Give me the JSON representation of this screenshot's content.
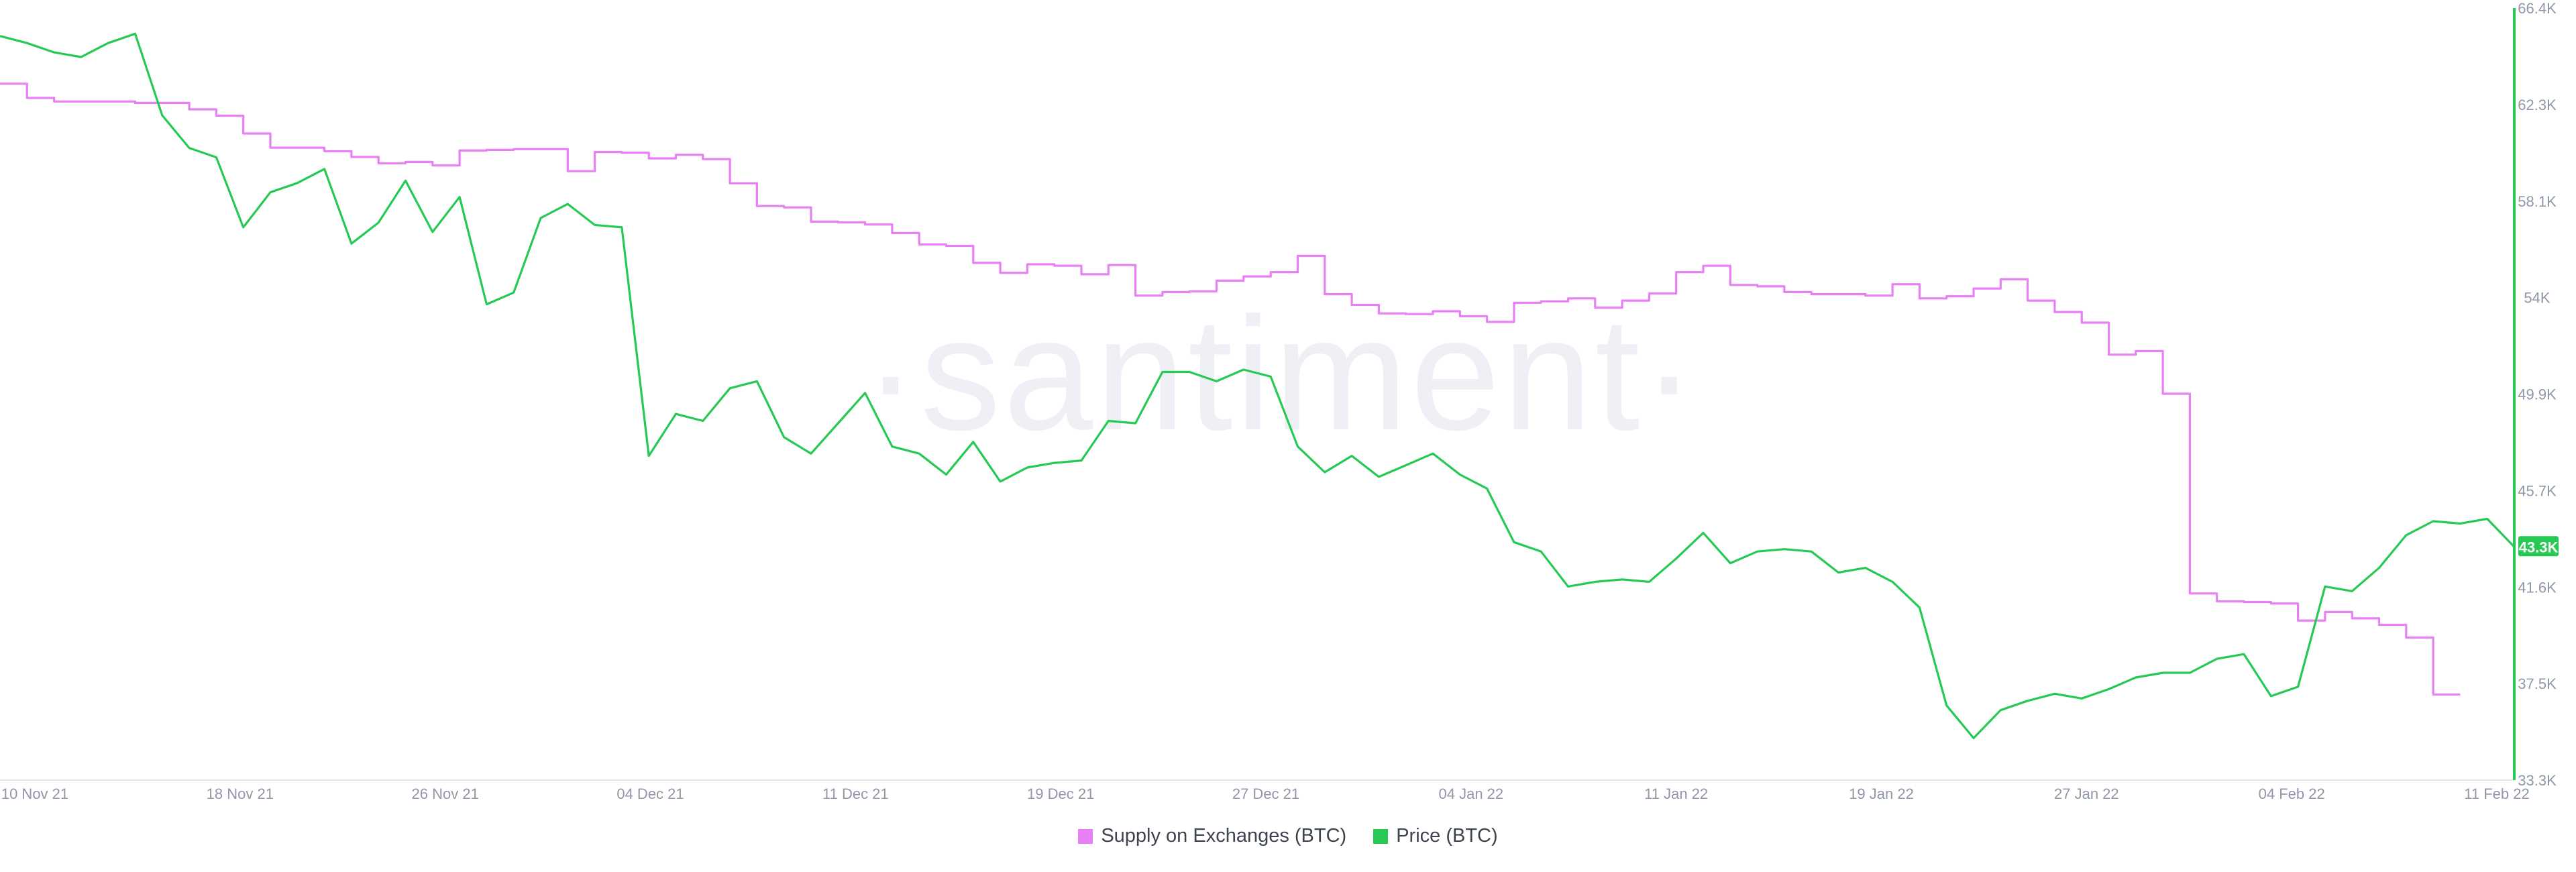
{
  "watermark": "·santiment·",
  "current_price_badge": "43.3K",
  "colors": {
    "supply": "#e87ff5",
    "price": "#26c953",
    "badge_bg": "#26c953",
    "axis_text": "#8f97a8",
    "watermark": "#eef0f5"
  },
  "legend": [
    {
      "label": "Supply on Exchanges (BTC)",
      "color": "#e87ff5"
    },
    {
      "label": "Price (BTC)",
      "color": "#26c953"
    }
  ],
  "chart_data": {
    "type": "line",
    "title": "",
    "xlabel": "",
    "ylabel": "",
    "x_ticks": [
      "10 Nov 21",
      "18 Nov 21",
      "26 Nov 21",
      "04 Dec 21",
      "11 Dec 21",
      "19 Dec 21",
      "27 Dec 21",
      "04 Jan 22",
      "11 Jan 22",
      "19 Jan 22",
      "27 Jan 22",
      "04 Feb 22",
      "11 Feb 22"
    ],
    "x_range": [
      "2021-11-10",
      "2022-02-11"
    ],
    "y_right_ticks": [
      "66.4K",
      "62.3K",
      "58.1K",
      "54K",
      "49.9K",
      "45.7K",
      "41.6K",
      "37.5K",
      "33.3K"
    ],
    "y_right_range": [
      33300,
      66400
    ],
    "series": [
      {
        "name": "Supply on Exchanges (BTC)",
        "color": "#e87ff5",
        "step": true,
        "axis": "hidden",
        "y_range": [
          0,
          100
        ],
        "points": [
          [
            "2021-11-10",
            92
          ],
          [
            "2021-11-11",
            90
          ],
          [
            "2021-11-12",
            89.5
          ],
          [
            "2021-11-13",
            89.5
          ],
          [
            "2021-11-15",
            89.3
          ],
          [
            "2021-11-17",
            88.4
          ],
          [
            "2021-11-18",
            87.5
          ],
          [
            "2021-11-19",
            85
          ],
          [
            "2021-11-20",
            83
          ],
          [
            "2021-11-21",
            83
          ],
          [
            "2021-11-22",
            82.5
          ],
          [
            "2021-11-23",
            81.7
          ],
          [
            "2021-11-24",
            80.8
          ],
          [
            "2021-11-25",
            81
          ],
          [
            "2021-11-26",
            80.5
          ],
          [
            "2021-11-27",
            82.6
          ],
          [
            "2021-11-28",
            82.7
          ],
          [
            "2021-11-29",
            82.8
          ],
          [
            "2021-11-30",
            82.8
          ],
          [
            "2021-12-01",
            79.7
          ],
          [
            "2021-12-02",
            82.4
          ],
          [
            "2021-12-03",
            82.3
          ],
          [
            "2021-12-04",
            81.5
          ],
          [
            "2021-12-05",
            82
          ],
          [
            "2021-12-06",
            81.4
          ],
          [
            "2021-12-07",
            78
          ],
          [
            "2021-12-08",
            74.8
          ],
          [
            "2021-12-09",
            74.6
          ],
          [
            "2021-12-10",
            72.6
          ],
          [
            "2021-12-11",
            72.5
          ],
          [
            "2021-12-12",
            72.2
          ],
          [
            "2021-12-13",
            71
          ],
          [
            "2021-12-14",
            69.4
          ],
          [
            "2021-12-15",
            69.2
          ],
          [
            "2021-12-16",
            66.8
          ],
          [
            "2021-12-17",
            65.4
          ],
          [
            "2021-12-18",
            66.6
          ],
          [
            "2021-12-19",
            66.4
          ],
          [
            "2021-12-20",
            65.2
          ],
          [
            "2021-12-21",
            66.5
          ],
          [
            "2021-12-22",
            62.2
          ],
          [
            "2021-12-23",
            62.7
          ],
          [
            "2021-12-24",
            62.8
          ],
          [
            "2021-12-25",
            64.3
          ],
          [
            "2021-12-26",
            64.9
          ],
          [
            "2021-12-27",
            65.5
          ],
          [
            "2021-12-28",
            67.8
          ],
          [
            "2021-12-29",
            62.4
          ],
          [
            "2021-12-30",
            60.9
          ],
          [
            "2021-12-31",
            59.7
          ],
          [
            "2022-01-01",
            59.6
          ],
          [
            "2022-01-02",
            60
          ],
          [
            "2022-01-03",
            59.3
          ],
          [
            "2022-01-04",
            58.5
          ],
          [
            "2022-01-05",
            61.2
          ],
          [
            "2022-01-06",
            61.4
          ],
          [
            "2022-01-07",
            61.8
          ],
          [
            "2022-01-08",
            60.5
          ],
          [
            "2022-01-09",
            61.5
          ],
          [
            "2022-01-10",
            62.5
          ],
          [
            "2022-01-11",
            65.5
          ],
          [
            "2022-01-12",
            66.4
          ],
          [
            "2022-01-13",
            63.7
          ],
          [
            "2022-01-14",
            63.5
          ],
          [
            "2022-01-15",
            62.7
          ],
          [
            "2022-01-16",
            62.4
          ],
          [
            "2022-01-17",
            62.4
          ],
          [
            "2022-01-18",
            62.2
          ],
          [
            "2022-01-19",
            63.8
          ],
          [
            "2022-01-20",
            61.8
          ],
          [
            "2022-01-21",
            62.1
          ],
          [
            "2022-01-22",
            63.2
          ],
          [
            "2022-01-23",
            64.5
          ],
          [
            "2022-01-24",
            61.5
          ],
          [
            "2022-01-25",
            59.9
          ],
          [
            "2022-01-26",
            58.4
          ],
          [
            "2022-01-27",
            53.9
          ],
          [
            "2022-01-28",
            54.4
          ],
          [
            "2022-01-29",
            48.4
          ],
          [
            "2022-01-30",
            20.3
          ],
          [
            "2022-01-31",
            19.2
          ],
          [
            "2022-02-01",
            19.1
          ],
          [
            "2022-02-02",
            18.9
          ],
          [
            "2022-02-03",
            16.5
          ],
          [
            "2022-02-04",
            17.7
          ],
          [
            "2022-02-05",
            16.8
          ],
          [
            "2022-02-06",
            15.9
          ],
          [
            "2022-02-07",
            14.1
          ],
          [
            "2022-02-08",
            6.1
          ],
          [
            "2022-02-09",
            6.1
          ]
        ]
      },
      {
        "name": "Price (BTC)",
        "color": "#26c953",
        "step": false,
        "axis": "right",
        "points": [
          [
            "2021-11-10",
            65200
          ],
          [
            "2021-11-11",
            64900
          ],
          [
            "2021-11-12",
            64500
          ],
          [
            "2021-11-13",
            64300
          ],
          [
            "2021-11-14",
            64900
          ],
          [
            "2021-11-15",
            65300
          ],
          [
            "2021-11-16",
            61800
          ],
          [
            "2021-11-17",
            60400
          ],
          [
            "2021-11-18",
            60000
          ],
          [
            "2021-11-19",
            57000
          ],
          [
            "2021-11-20",
            58500
          ],
          [
            "2021-11-21",
            58900
          ],
          [
            "2021-11-22",
            59500
          ],
          [
            "2021-11-23",
            56300
          ],
          [
            "2021-11-24",
            57200
          ],
          [
            "2021-11-25",
            59000
          ],
          [
            "2021-11-26",
            56800
          ],
          [
            "2021-11-27",
            58300
          ],
          [
            "2021-11-28",
            53700
          ],
          [
            "2021-11-29",
            54200
          ],
          [
            "2021-11-30",
            57400
          ],
          [
            "2021-12-01",
            58000
          ],
          [
            "2021-12-02",
            57100
          ],
          [
            "2021-12-03",
            57000
          ],
          [
            "2021-12-04",
            47200
          ],
          [
            "2021-12-05",
            49000
          ],
          [
            "2021-12-06",
            48700
          ],
          [
            "2021-12-07",
            50100
          ],
          [
            "2021-12-08",
            50400
          ],
          [
            "2021-12-09",
            48000
          ],
          [
            "2021-12-10",
            47300
          ],
          [
            "2021-12-11",
            48600
          ],
          [
            "2021-12-12",
            49900
          ],
          [
            "2021-12-13",
            47600
          ],
          [
            "2021-12-14",
            47300
          ],
          [
            "2021-12-15",
            46400
          ],
          [
            "2021-12-16",
            47800
          ],
          [
            "2021-12-17",
            46100
          ],
          [
            "2021-12-18",
            46700
          ],
          [
            "2021-12-19",
            46900
          ],
          [
            "2021-12-20",
            47000
          ],
          [
            "2021-12-21",
            48700
          ],
          [
            "2021-12-22",
            48600
          ],
          [
            "2021-12-23",
            50800
          ],
          [
            "2021-12-24",
            50800
          ],
          [
            "2021-12-25",
            50400
          ],
          [
            "2021-12-26",
            50900
          ],
          [
            "2021-12-27",
            50600
          ],
          [
            "2021-12-28",
            47600
          ],
          [
            "2021-12-29",
            46500
          ],
          [
            "2021-12-30",
            47200
          ],
          [
            "2021-12-31",
            46300
          ],
          [
            "2022-01-01",
            46800
          ],
          [
            "2022-01-02",
            47300
          ],
          [
            "2022-01-03",
            46400
          ],
          [
            "2022-01-04",
            45800
          ],
          [
            "2022-01-05",
            43500
          ],
          [
            "2022-01-06",
            43100
          ],
          [
            "2022-01-07",
            41600
          ],
          [
            "2022-01-08",
            41800
          ],
          [
            "2022-01-09",
            41900
          ],
          [
            "2022-01-10",
            41800
          ],
          [
            "2022-01-11",
            42800
          ],
          [
            "2022-01-12",
            43900
          ],
          [
            "2022-01-13",
            42600
          ],
          [
            "2022-01-14",
            43100
          ],
          [
            "2022-01-15",
            43200
          ],
          [
            "2022-01-16",
            43100
          ],
          [
            "2022-01-17",
            42200
          ],
          [
            "2022-01-18",
            42400
          ],
          [
            "2022-01-19",
            41800
          ],
          [
            "2022-01-20",
            40700
          ],
          [
            "2022-01-21",
            36500
          ],
          [
            "2022-01-22",
            35100
          ],
          [
            "2022-01-23",
            36300
          ],
          [
            "2022-01-24",
            36700
          ],
          [
            "2022-01-25",
            37000
          ],
          [
            "2022-01-26",
            36800
          ],
          [
            "2022-01-27",
            37200
          ],
          [
            "2022-01-28",
            37700
          ],
          [
            "2022-01-29",
            37900
          ],
          [
            "2022-01-30",
            37900
          ],
          [
            "2022-01-31",
            38500
          ],
          [
            "2022-02-01",
            38700
          ],
          [
            "2022-02-02",
            36900
          ],
          [
            "2022-02-03",
            37300
          ],
          [
            "2022-02-04",
            41600
          ],
          [
            "2022-02-05",
            41400
          ],
          [
            "2022-02-06",
            42400
          ],
          [
            "2022-02-07",
            43800
          ],
          [
            "2022-02-08",
            44400
          ],
          [
            "2022-02-09",
            44300
          ],
          [
            "2022-02-10",
            44500
          ],
          [
            "2022-02-11",
            43300
          ]
        ]
      }
    ],
    "grid": false,
    "legend_position": "bottom-center"
  }
}
